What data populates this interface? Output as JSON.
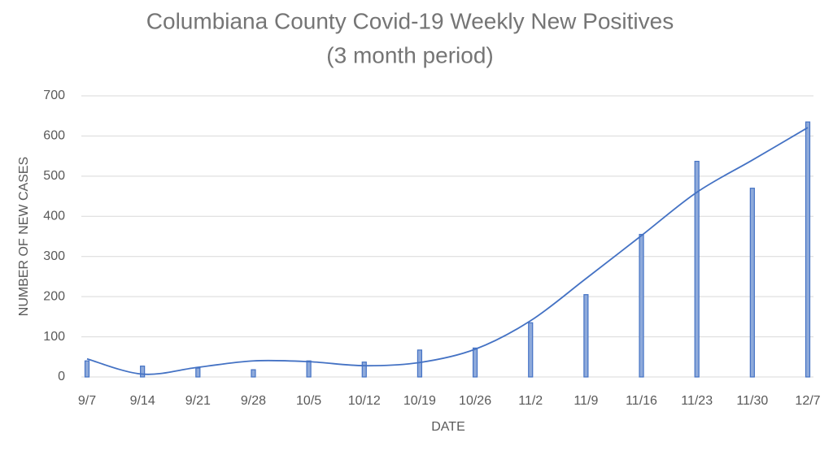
{
  "chart_data": {
    "type": "bar",
    "title": "Columbiana County Covid-19 Weekly New Positives",
    "subtitle": "(3 month period)",
    "x_label": "DATE",
    "y_label": "NUMBER OF NEW CASES",
    "categories": [
      "9/7",
      "9/14",
      "9/21",
      "9/28",
      "10/5",
      "10/12",
      "10/19",
      "10/26",
      "11/2",
      "11/9",
      "11/16",
      "11/23",
      "11/30",
      "12/7"
    ],
    "values": [
      40,
      27,
      22,
      18,
      40,
      37,
      67,
      72,
      135,
      205,
      355,
      537,
      470,
      635
    ],
    "color": "#4472c4",
    "trendline": {
      "color": "#4472c4",
      "values": [
        45,
        7,
        24,
        40,
        38,
        28,
        36,
        69,
        140,
        245,
        352,
        460,
        540,
        621
      ]
    },
    "ylim": [
      0,
      700
    ],
    "yticks": [
      0,
      100,
      200,
      300,
      400,
      500,
      600,
      700
    ],
    "grid": true
  }
}
